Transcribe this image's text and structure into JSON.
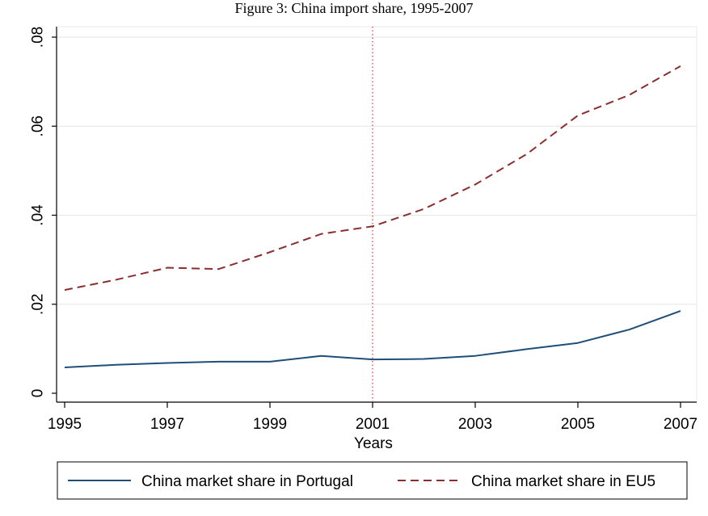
{
  "caption": "Figure 3: China import share, 1995-2007",
  "chart_data": {
    "type": "line",
    "xlabel": "Years",
    "ylabel": "",
    "xlim": [
      1995,
      2007
    ],
    "ylim": [
      0,
      0.08
    ],
    "x_ticks": [
      1995,
      1997,
      1999,
      2001,
      2003,
      2005,
      2007
    ],
    "x_tick_labels": [
      "1995",
      "1997",
      "1999",
      "2001",
      "2003",
      "2005",
      "2007"
    ],
    "y_ticks": [
      0,
      0.02,
      0.04,
      0.06,
      0.08
    ],
    "y_tick_labels": [
      "0",
      ".02",
      ".04",
      ".06",
      ".08"
    ],
    "grid": "horizontal",
    "reference_line": {
      "x": 2001,
      "style": "dotted",
      "color": "#e0444e"
    },
    "legend_position": "bottom",
    "x": [
      1995,
      1996,
      1997,
      1998,
      1999,
      2000,
      2001,
      2002,
      2003,
      2004,
      2005,
      2006,
      2007
    ],
    "series": [
      {
        "name": "China market share in Portugal",
        "style": "solid",
        "color": "#1f4e79",
        "values": [
          0.0058,
          0.0064,
          0.0068,
          0.0071,
          0.0071,
          0.0084,
          0.0076,
          0.0077,
          0.0084,
          0.0099,
          0.0113,
          0.0143,
          0.0185
        ]
      },
      {
        "name": "China market share in EU5",
        "style": "dashed",
        "color": "#8b2e2e",
        "values": [
          0.0232,
          0.0255,
          0.0282,
          0.0279,
          0.0317,
          0.0358,
          0.0375,
          0.0414,
          0.0469,
          0.0537,
          0.0624,
          0.067,
          0.0735
        ]
      }
    ]
  }
}
